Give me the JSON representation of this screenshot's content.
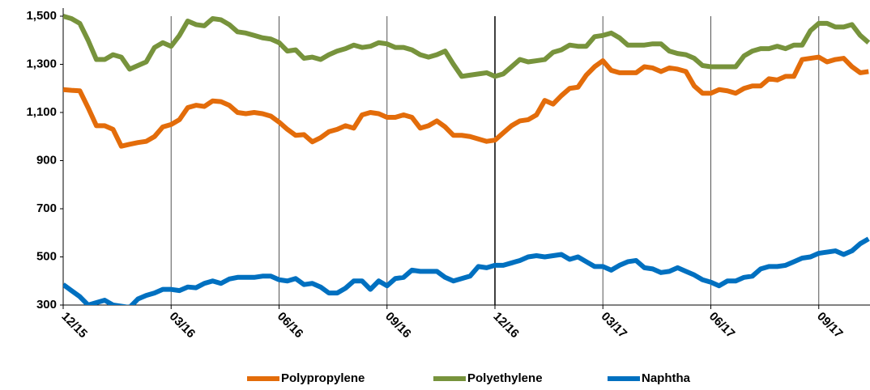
{
  "chart_data": {
    "type": "line",
    "categories": [
      "12/15",
      null,
      null,
      null,
      null,
      null,
      null,
      null,
      null,
      null,
      null,
      null,
      null,
      "03/16",
      null,
      null,
      null,
      null,
      null,
      null,
      null,
      null,
      null,
      null,
      null,
      null,
      "06/16",
      null,
      null,
      null,
      null,
      null,
      null,
      null,
      null,
      null,
      null,
      null,
      null,
      "09/16",
      null,
      null,
      null,
      null,
      null,
      null,
      null,
      null,
      null,
      null,
      null,
      null,
      "12/16",
      null,
      null,
      null,
      null,
      null,
      null,
      null,
      null,
      null,
      null,
      null,
      null,
      "03/17",
      null,
      null,
      null,
      null,
      null,
      null,
      null,
      null,
      null,
      null,
      null,
      null,
      "06/17",
      null,
      null,
      null,
      null,
      null,
      null,
      null,
      null,
      null,
      null,
      null,
      null,
      "09/17",
      null,
      null,
      null,
      null,
      null,
      null
    ],
    "series": [
      {
        "name": "Polypropylene",
        "color": "#e36c0a",
        "values": [
          1195,
          1192,
          1190,
          1120,
          1045,
          1045,
          1030,
          960,
          968,
          975,
          980,
          1000,
          1040,
          1050,
          1070,
          1120,
          1130,
          1125,
          1148,
          1145,
          1130,
          1100,
          1095,
          1100,
          1095,
          1085,
          1060,
          1030,
          1005,
          1008,
          978,
          995,
          1020,
          1030,
          1045,
          1035,
          1090,
          1100,
          1095,
          1080,
          1080,
          1090,
          1080,
          1035,
          1045,
          1065,
          1040,
          1005,
          1005,
          1000,
          990,
          980,
          985,
          1015,
          1045,
          1065,
          1070,
          1090,
          1150,
          1135,
          1170,
          1200,
          1205,
          1255,
          1290,
          1315,
          1275,
          1265,
          1265,
          1265,
          1290,
          1285,
          1270,
          1285,
          1280,
          1270,
          1210,
          1180,
          1180,
          1195,
          1190,
          1180,
          1200,
          1210,
          1210,
          1240,
          1235,
          1250,
          1250,
          1320,
          1325,
          1330,
          1310,
          1320,
          1325,
          1290,
          1265,
          1270
        ]
      },
      {
        "name": "Polyethylene",
        "color": "#77933c",
        "values": [
          1500,
          1490,
          1470,
          1400,
          1320,
          1320,
          1340,
          1330,
          1280,
          1295,
          1310,
          1370,
          1390,
          1375,
          1420,
          1480,
          1465,
          1460,
          1490,
          1485,
          1465,
          1435,
          1430,
          1420,
          1410,
          1405,
          1390,
          1355,
          1360,
          1325,
          1330,
          1320,
          1340,
          1355,
          1365,
          1380,
          1370,
          1375,
          1390,
          1385,
          1370,
          1370,
          1360,
          1340,
          1330,
          1340,
          1355,
          1300,
          1250,
          1255,
          1260,
          1265,
          1250,
          1260,
          1290,
          1320,
          1310,
          1315,
          1320,
          1350,
          1360,
          1380,
          1375,
          1375,
          1415,
          1420,
          1430,
          1410,
          1380,
          1380,
          1380,
          1385,
          1385,
          1355,
          1345,
          1340,
          1325,
          1295,
          1290,
          1290,
          1290,
          1290,
          1335,
          1355,
          1365,
          1365,
          1375,
          1365,
          1380,
          1380,
          1440,
          1470,
          1470,
          1455,
          1455,
          1465,
          1420,
          1390
        ]
      },
      {
        "name": "Naphtha",
        "color": "#0070c0",
        "values": [
          385,
          360,
          335,
          300,
          310,
          320,
          300,
          295,
          290,
          325,
          340,
          350,
          365,
          365,
          360,
          375,
          372,
          390,
          400,
          390,
          408,
          415,
          415,
          415,
          420,
          420,
          405,
          400,
          410,
          385,
          390,
          375,
          350,
          350,
          370,
          400,
          400,
          365,
          400,
          380,
          410,
          415,
          445,
          440,
          440,
          440,
          415,
          400,
          410,
          420,
          460,
          455,
          465,
          465,
          475,
          485,
          500,
          505,
          500,
          505,
          510,
          490,
          500,
          480,
          460,
          460,
          445,
          465,
          480,
          485,
          455,
          450,
          435,
          440,
          455,
          440,
          425,
          405,
          395,
          380,
          400,
          400,
          415,
          420,
          450,
          460,
          460,
          465,
          480,
          495,
          500,
          515,
          520,
          525,
          510,
          525,
          555,
          575
        ]
      }
    ],
    "ylim": [
      300,
      1500
    ],
    "yticks": [
      300,
      500,
      700,
      900,
      {
        "value": 1100,
        "label": "1,100"
      },
      {
        "value": 1300,
        "label": "1,300"
      },
      {
        "value": 1500,
        "label": "1,500"
      }
    ],
    "grid": false,
    "legend": "bottom"
  }
}
